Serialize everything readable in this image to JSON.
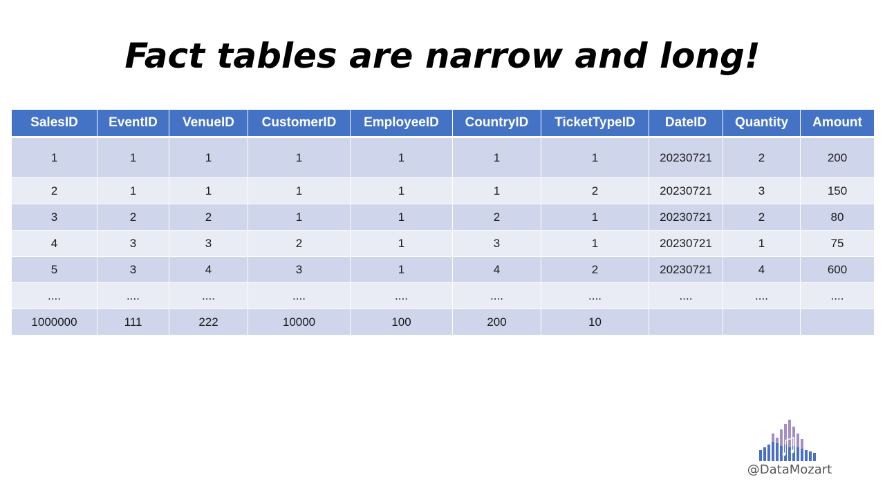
{
  "title": "Fact tables are narrow and long!",
  "table": {
    "headers": [
      "SalesID",
      "EventID",
      "VenueID",
      "CustomerID",
      "EmployeeID",
      "CountryID",
      "TicketTypeID",
      "DateID",
      "Quantity",
      "Amount"
    ],
    "rows": [
      [
        "1",
        "1",
        "1",
        "1",
        "1",
        "1",
        "1",
        "20230721",
        "2",
        "200"
      ],
      [
        "2",
        "1",
        "1",
        "1",
        "1",
        "1",
        "2",
        "20230721",
        "3",
        "150"
      ],
      [
        "3",
        "2",
        "2",
        "1",
        "1",
        "2",
        "1",
        "20230721",
        "2",
        "80"
      ],
      [
        "4",
        "3",
        "3",
        "2",
        "1",
        "3",
        "1",
        "20230721",
        "1",
        "75"
      ],
      [
        "5",
        "3",
        "4",
        "3",
        "1",
        "4",
        "2",
        "20230721",
        "4",
        "600"
      ],
      [
        "....",
        "....",
        "....",
        "....",
        "....",
        "....",
        "....",
        "....",
        "....",
        "...."
      ],
      [
        "1000000",
        "111",
        "222",
        "10000",
        "100",
        "200",
        "10",
        "",
        "",
        ""
      ]
    ]
  },
  "logo": {
    "name": "datamozart-logo-icon",
    "handle": "@DataMozart"
  },
  "colors": {
    "header_bg": "#4472c4",
    "band_dark": "#cfd5ea",
    "band_light": "#e9ebf5",
    "logo_blue": "#4a6fc7",
    "logo_purple": "#a48fc4"
  }
}
